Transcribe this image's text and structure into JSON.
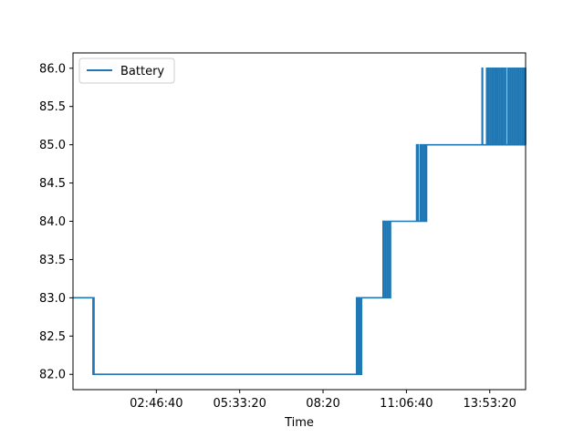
{
  "chart_data": {
    "type": "line",
    "title": "",
    "xlabel": "Time",
    "ylabel": "",
    "x_unit": "HH:MM:SS",
    "xlim": [
      "00:00:00",
      "15:05:00"
    ],
    "ylim": [
      81.8,
      86.2
    ],
    "x_ticks": [
      "02:46:40",
      "05:33:20",
      "08:20",
      "11:06:40",
      "13:53:20"
    ],
    "y_ticks": [
      "82.0",
      "82.5",
      "83.0",
      "83.5",
      "84.0",
      "84.5",
      "85.0",
      "85.5",
      "86.0"
    ],
    "grid": false,
    "legend": {
      "position": "top-left",
      "entries": [
        "Battery"
      ]
    },
    "colors": {
      "series": "#1f77b4",
      "axes": "#000000",
      "background": "#ffffff"
    },
    "series": [
      {
        "name": "Battery",
        "points": [
          [
            "00:00:00",
            83
          ],
          [
            "00:40:00",
            83
          ],
          [
            "00:40:00",
            82
          ],
          [
            "00:41:00",
            82
          ],
          [
            "00:41:00",
            83
          ],
          [
            "00:42:00",
            83
          ],
          [
            "00:42:00",
            82
          ],
          [
            "09:27:00",
            82
          ],
          [
            "09:27:00",
            83
          ],
          [
            "09:28:00",
            83
          ],
          [
            "09:28:00",
            82
          ],
          [
            "09:30:00",
            82
          ],
          [
            "09:30:00",
            83
          ],
          [
            "09:31:00",
            83
          ],
          [
            "09:31:00",
            82
          ],
          [
            "09:33:00",
            82
          ],
          [
            "09:33:00",
            83
          ],
          [
            "09:34:00",
            83
          ],
          [
            "09:34:00",
            82
          ],
          [
            "09:37:00",
            82
          ],
          [
            "09:37:00",
            83
          ],
          [
            "10:20:00",
            83
          ],
          [
            "10:20:00",
            84
          ],
          [
            "10:21:00",
            84
          ],
          [
            "10:21:00",
            83
          ],
          [
            "10:24:00",
            83
          ],
          [
            "10:24:00",
            84
          ],
          [
            "10:25:00",
            84
          ],
          [
            "10:25:00",
            83
          ],
          [
            "10:28:00",
            83
          ],
          [
            "10:28:00",
            84
          ],
          [
            "10:29:00",
            84
          ],
          [
            "10:29:00",
            83
          ],
          [
            "10:32:00",
            83
          ],
          [
            "10:32:00",
            84
          ],
          [
            "10:33:00",
            84
          ],
          [
            "10:33:00",
            83
          ],
          [
            "10:35:00",
            83
          ],
          [
            "10:35:00",
            84
          ],
          [
            "11:27:00",
            84
          ],
          [
            "11:27:00",
            85
          ],
          [
            "11:28:00",
            85
          ],
          [
            "11:28:00",
            84
          ],
          [
            "11:29:00",
            84
          ],
          [
            "11:29:00",
            85
          ],
          [
            "11:30:00",
            85
          ],
          [
            "11:30:00",
            84
          ],
          [
            "11:34:00",
            84
          ],
          [
            "11:34:00",
            85
          ],
          [
            "11:35:00",
            85
          ],
          [
            "11:35:00",
            84
          ],
          [
            "11:37:00",
            84
          ],
          [
            "11:37:00",
            85
          ],
          [
            "11:38:00",
            85
          ],
          [
            "11:38:00",
            84
          ],
          [
            "11:41:00",
            84
          ],
          [
            "11:41:00",
            85
          ],
          [
            "11:42:00",
            85
          ],
          [
            "11:42:00",
            84
          ],
          [
            "11:44:00",
            84
          ],
          [
            "11:44:00",
            85
          ],
          [
            "11:45:00",
            85
          ],
          [
            "11:45:00",
            84
          ],
          [
            "11:47:00",
            84
          ],
          [
            "11:47:00",
            85
          ],
          [
            "13:38:00",
            85
          ],
          [
            "13:38:00",
            86
          ],
          [
            "13:39:00",
            86
          ],
          [
            "13:39:00",
            85
          ],
          [
            "13:47:00",
            85
          ],
          [
            "13:47:00",
            86
          ],
          [
            "13:48:00",
            86
          ],
          [
            "13:48:00",
            85
          ],
          [
            "13:50:00",
            85
          ],
          [
            "13:50:00",
            86
          ],
          [
            "13:51:00",
            86
          ],
          [
            "13:51:00",
            85
          ],
          [
            "13:54:00",
            85
          ],
          [
            "13:54:00",
            86
          ],
          [
            "13:55:00",
            86
          ],
          [
            "13:55:00",
            85
          ],
          [
            "13:58:00",
            85
          ],
          [
            "13:58:00",
            86
          ],
          [
            "14:00:00",
            86
          ],
          [
            "14:00:00",
            85
          ],
          [
            "14:03:00",
            85
          ],
          [
            "14:03:00",
            86
          ],
          [
            "14:04:00",
            86
          ],
          [
            "14:04:00",
            85
          ],
          [
            "14:06:00",
            85
          ],
          [
            "14:06:00",
            86
          ],
          [
            "14:07:00",
            86
          ],
          [
            "14:07:00",
            85
          ],
          [
            "14:09:00",
            85
          ],
          [
            "14:09:00",
            86
          ],
          [
            "14:10:00",
            86
          ],
          [
            "14:10:00",
            85
          ],
          [
            "14:13:00",
            85
          ],
          [
            "14:13:00",
            86
          ],
          [
            "14:14:00",
            86
          ],
          [
            "14:14:00",
            85
          ],
          [
            "14:17:00",
            85
          ],
          [
            "14:17:00",
            86
          ],
          [
            "14:18:00",
            86
          ],
          [
            "14:18:00",
            85
          ],
          [
            "14:21:00",
            85
          ],
          [
            "14:21:00",
            86
          ],
          [
            "14:22:00",
            86
          ],
          [
            "14:22:00",
            85
          ],
          [
            "14:25:00",
            85
          ],
          [
            "14:25:00",
            86
          ],
          [
            "14:26:00",
            86
          ],
          [
            "14:26:00",
            85
          ],
          [
            "14:30:00",
            85
          ],
          [
            "14:30:00",
            86
          ],
          [
            "14:31:00",
            86
          ],
          [
            "14:31:00",
            85
          ],
          [
            "14:34:00",
            85
          ],
          [
            "14:34:00",
            86
          ],
          [
            "14:35:00",
            86
          ],
          [
            "14:35:00",
            85
          ],
          [
            "14:38:00",
            85
          ],
          [
            "14:38:00",
            86
          ],
          [
            "14:39:00",
            86
          ],
          [
            "14:39:00",
            85
          ],
          [
            "14:42:00",
            85
          ],
          [
            "14:42:00",
            86
          ],
          [
            "14:43:00",
            86
          ],
          [
            "14:43:00",
            85
          ],
          [
            "14:46:00",
            85
          ],
          [
            "14:46:00",
            86
          ],
          [
            "14:47:00",
            86
          ],
          [
            "14:47:00",
            85
          ],
          [
            "14:50:00",
            85
          ],
          [
            "14:50:00",
            86
          ],
          [
            "14:51:00",
            86
          ],
          [
            "14:51:00",
            85
          ],
          [
            "14:54:00",
            85
          ],
          [
            "14:54:00",
            86
          ],
          [
            "14:55:00",
            86
          ],
          [
            "14:55:00",
            85
          ],
          [
            "14:58:00",
            85
          ],
          [
            "14:58:00",
            86
          ],
          [
            "14:59:00",
            86
          ],
          [
            "14:59:00",
            85
          ],
          [
            "15:01:00",
            85
          ],
          [
            "15:01:00",
            86
          ],
          [
            "15:02:00",
            86
          ],
          [
            "15:02:00",
            85
          ],
          [
            "15:04:00",
            85
          ],
          [
            "15:04:00",
            86
          ],
          [
            "15:05:00",
            86
          ],
          [
            "15:05:00",
            85
          ]
        ]
      }
    ]
  }
}
